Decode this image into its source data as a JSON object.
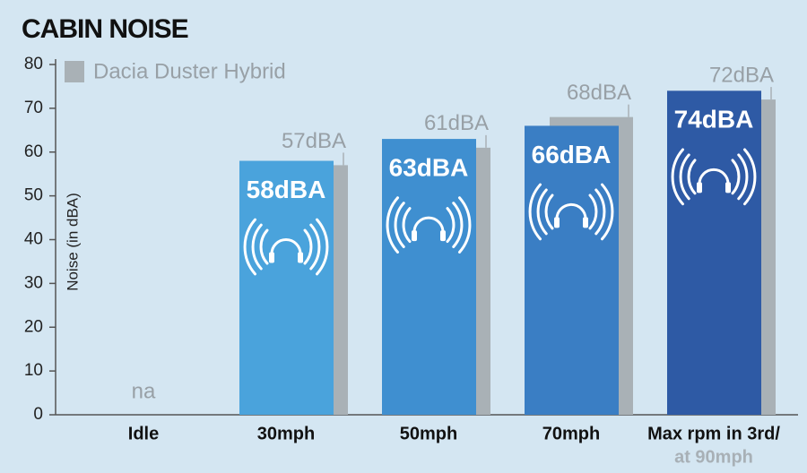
{
  "chart_data": {
    "type": "bar",
    "title": "CABIN NOISE",
    "ylabel": "Noise (in dBA)",
    "categories": [
      "Idle",
      "30mph",
      "50mph",
      "70mph",
      [
        "Max rpm in 3rd/",
        "at 90mph"
      ]
    ],
    "series": [
      {
        "colors": [
          "#4aa3dc",
          "#4aa3dc",
          "#3f8fd0",
          "#3a7ec4",
          "#2e5aa5"
        ],
        "values": [
          null,
          58,
          63,
          66,
          74
        ],
        "value_labels": [
          "na",
          "58dBA",
          "63dBA",
          "66dBA",
          "74dBA"
        ]
      },
      {
        "name": "Dacia Duster Hybrid",
        "color": "#a9b1b6",
        "values": [
          null,
          57,
          61,
          68,
          72
        ],
        "value_labels": [
          null,
          "57dBA",
          "61dBA",
          "68dBA",
          "72dBA"
        ]
      }
    ],
    "ylim": [
      0,
      80
    ],
    "yticks": [
      0,
      10,
      20,
      30,
      40,
      50,
      60,
      70,
      80
    ]
  }
}
